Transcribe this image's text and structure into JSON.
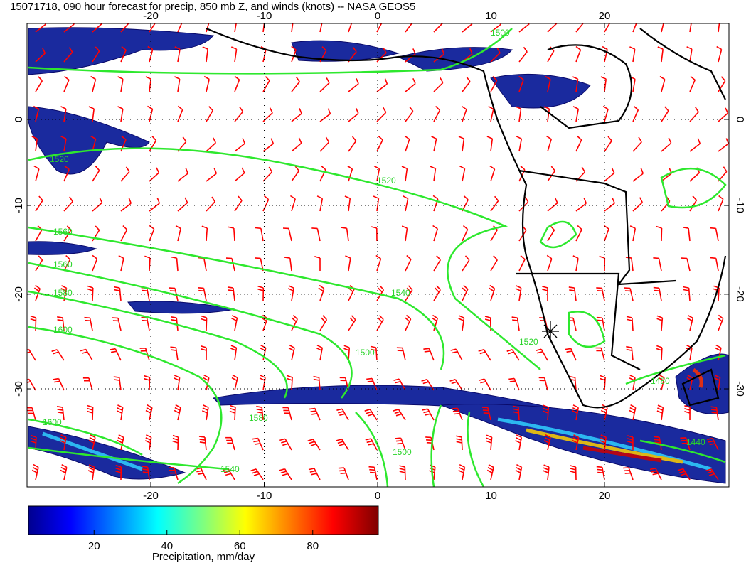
{
  "title": "15071718, 090 hour forecast for precip, 850 mb Z, and winds (knots) -- NASA GEOS5",
  "map": {
    "lon_ticks": [
      -20,
      -10,
      0,
      10,
      20
    ],
    "lat_ticks": [
      0,
      -10,
      -20,
      -30
    ],
    "contour_labels": [
      1500,
      1520,
      1520,
      1560,
      1560,
      1580,
      1600,
      1540,
      1520,
      1500,
      1580,
      1540,
      1500,
      1480,
      1440,
      1600
    ]
  },
  "colorbar": {
    "label": "Precipitation, mm/day",
    "lim": [
      2,
      98
    ],
    "ticks": [
      20,
      40,
      60,
      80
    ]
  }
}
